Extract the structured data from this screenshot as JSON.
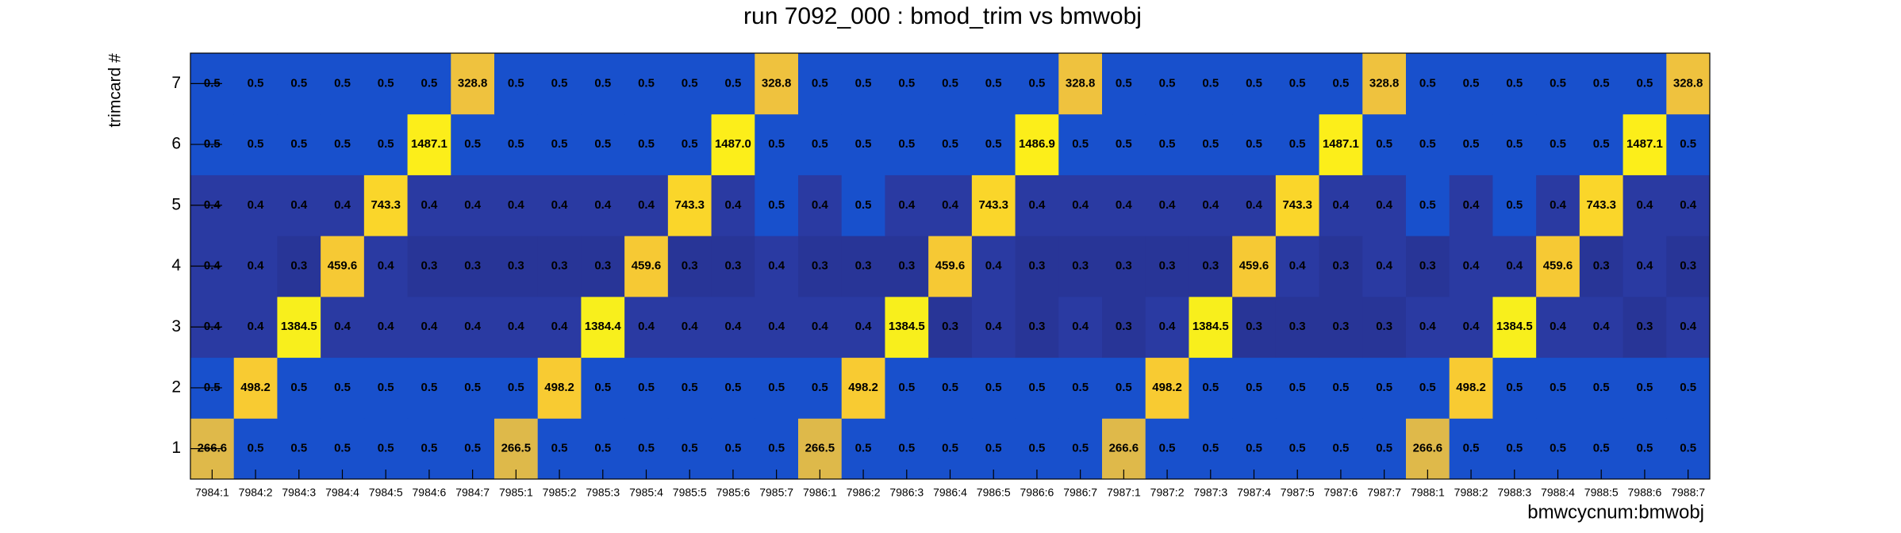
{
  "chart_data": {
    "type": "heatmap",
    "title": "run 7092_000 : bmod_trim vs bmwobj",
    "x_label": "bmwcycnum:bmwobj",
    "y_label": "trimcard #",
    "x_categories": [
      "7984:1",
      "7984:2",
      "7984:3",
      "7984:4",
      "7984:5",
      "7984:6",
      "7984:7",
      "7985:1",
      "7985:2",
      "7985:3",
      "7985:4",
      "7985:5",
      "7985:6",
      "7985:7",
      "7986:1",
      "7986:2",
      "7986:3",
      "7986:4",
      "7986:5",
      "7986:6",
      "7986:7",
      "7987:1",
      "7987:2",
      "7987:3",
      "7987:4",
      "7987:5",
      "7987:6",
      "7987:7",
      "7988:1",
      "7988:2",
      "7988:3",
      "7988:4",
      "7988:5",
      "7988:6",
      "7988:7"
    ],
    "y_categories": [
      1,
      2,
      3,
      4,
      5,
      6,
      7
    ],
    "values": [
      [
        266.6,
        0.5,
        0.5,
        0.5,
        0.5,
        0.5,
        0.5,
        266.5,
        0.5,
        0.5,
        0.5,
        0.5,
        0.5,
        0.5,
        266.5,
        0.5,
        0.5,
        0.5,
        0.5,
        0.5,
        0.5,
        266.6,
        0.5,
        0.5,
        0.5,
        0.5,
        0.5,
        0.5,
        266.6,
        0.5,
        0.5,
        0.5,
        0.5,
        0.5,
        0.5
      ],
      [
        0.5,
        498.2,
        0.5,
        0.5,
        0.5,
        0.5,
        0.5,
        0.5,
        498.2,
        0.5,
        0.5,
        0.5,
        0.5,
        0.5,
        0.5,
        498.2,
        0.5,
        0.5,
        0.5,
        0.5,
        0.5,
        0.5,
        498.2,
        0.5,
        0.5,
        0.5,
        0.5,
        0.5,
        0.5,
        498.2,
        0.5,
        0.5,
        0.5,
        0.5,
        0.5
      ],
      [
        0.4,
        0.4,
        1384.5,
        0.4,
        0.4,
        0.4,
        0.4,
        0.4,
        0.4,
        1384.4,
        0.4,
        0.4,
        0.4,
        0.4,
        0.4,
        0.4,
        1384.5,
        0.3,
        0.4,
        0.3,
        0.4,
        0.3,
        0.4,
        1384.5,
        0.3,
        0.3,
        0.3,
        0.3,
        0.4,
        0.4,
        1384.5,
        0.4,
        0.4,
        0.3,
        0.4
      ],
      [
        0.4,
        0.4,
        0.3,
        459.6,
        0.4,
        0.3,
        0.3,
        0.3,
        0.3,
        0.3,
        459.6,
        0.3,
        0.3,
        0.4,
        0.3,
        0.3,
        0.3,
        459.6,
        0.4,
        0.3,
        0.3,
        0.3,
        0.3,
        0.3,
        459.6,
        0.4,
        0.3,
        0.4,
        0.3,
        0.4,
        0.4,
        459.6,
        0.3,
        0.4,
        0.3
      ],
      [
        0.4,
        0.4,
        0.4,
        0.4,
        743.3,
        0.4,
        0.4,
        0.4,
        0.4,
        0.4,
        0.4,
        743.3,
        0.4,
        0.5,
        0.4,
        0.5,
        0.4,
        0.4,
        743.3,
        0.4,
        0.4,
        0.4,
        0.4,
        0.4,
        0.4,
        743.3,
        0.4,
        0.4,
        0.5,
        0.4,
        0.5,
        0.4,
        743.3,
        0.4,
        0.4
      ],
      [
        0.5,
        0.5,
        0.5,
        0.5,
        0.5,
        1487.1,
        0.5,
        0.5,
        0.5,
        0.5,
        0.5,
        0.5,
        1487.0,
        0.5,
        0.5,
        0.5,
        0.5,
        0.5,
        0.5,
        1486.9,
        0.5,
        0.5,
        0.5,
        0.5,
        0.5,
        0.5,
        1487.1,
        0.5,
        0.5,
        0.5,
        0.5,
        0.5,
        0.5,
        1487.1,
        0.5
      ],
      [
        0.5,
        0.5,
        0.5,
        0.5,
        0.5,
        0.5,
        328.8,
        0.5,
        0.5,
        0.5,
        0.5,
        0.5,
        0.5,
        328.8,
        0.5,
        0.5,
        0.5,
        0.5,
        0.5,
        0.5,
        328.8,
        0.5,
        0.5,
        0.5,
        0.5,
        0.5,
        0.5,
        328.8,
        0.5,
        0.5,
        0.5,
        0.5,
        0.5,
        0.5,
        328.8
      ]
    ],
    "value_labels": [
      [
        "266.6",
        "0.5",
        "0.5",
        "0.5",
        "0.5",
        "0.5",
        "0.5",
        "266.5",
        "0.5",
        "0.5",
        "0.5",
        "0.5",
        "0.5",
        "0.5",
        "266.5",
        "0.5",
        "0.5",
        "0.5",
        "0.5",
        "0.5",
        "0.5",
        "266.6",
        "0.5",
        "0.5",
        "0.5",
        "0.5",
        "0.5",
        "0.5",
        "266.6",
        "0.5",
        "0.5",
        "0.5",
        "0.5",
        "0.5",
        "0.5"
      ],
      [
        "0.5",
        "498.2",
        "0.5",
        "0.5",
        "0.5",
        "0.5",
        "0.5",
        "0.5",
        "498.2",
        "0.5",
        "0.5",
        "0.5",
        "0.5",
        "0.5",
        "0.5",
        "498.2",
        "0.5",
        "0.5",
        "0.5",
        "0.5",
        "0.5",
        "0.5",
        "498.2",
        "0.5",
        "0.5",
        "0.5",
        "0.5",
        "0.5",
        "0.5",
        "498.2",
        "0.5",
        "0.5",
        "0.5",
        "0.5",
        "0.5"
      ],
      [
        "0.4",
        "0.4",
        "1384.5",
        "0.4",
        "0.4",
        "0.4",
        "0.4",
        "0.4",
        "0.4",
        "1384.4",
        "0.4",
        "0.4",
        "0.4",
        "0.4",
        "0.4",
        "0.4",
        "1384.5",
        "0.3",
        "0.4",
        "0.3",
        "0.4",
        "0.3",
        "0.4",
        "1384.5",
        "0.3",
        "0.3",
        "0.3",
        "0.3",
        "0.4",
        "0.4",
        "1384.5",
        "0.4",
        "0.4",
        "0.3",
        "0.4"
      ],
      [
        "0.4",
        "0.4",
        "0.3",
        "459.6",
        "0.4",
        "0.3",
        "0.3",
        "0.3",
        "0.3",
        "0.3",
        "459.6",
        "0.3",
        "0.3",
        "0.4",
        "0.3",
        "0.3",
        "0.3",
        "459.6",
        "0.4",
        "0.3",
        "0.3",
        "0.3",
        "0.3",
        "0.3",
        "459.6",
        "0.4",
        "0.3",
        "0.4",
        "0.3",
        "0.4",
        "0.4",
        "459.6",
        "0.3",
        "0.4",
        "0.3"
      ],
      [
        "0.4",
        "0.4",
        "0.4",
        "0.4",
        "743.3",
        "0.4",
        "0.4",
        "0.4",
        "0.4",
        "0.4",
        "0.4",
        "743.3",
        "0.4",
        "0.5",
        "0.4",
        "0.5",
        "0.4",
        "0.4",
        "743.3",
        "0.4",
        "0.4",
        "0.4",
        "0.4",
        "0.4",
        "0.4",
        "743.3",
        "0.4",
        "0.4",
        "0.5",
        "0.4",
        "0.5",
        "0.4",
        "743.3",
        "0.4",
        "0.4"
      ],
      [
        "0.5",
        "0.5",
        "0.5",
        "0.5",
        "0.5",
        "1487.1",
        "0.5",
        "0.5",
        "0.5",
        "0.5",
        "0.5",
        "0.5",
        "1487.0",
        "0.5",
        "0.5",
        "0.5",
        "0.5",
        "0.5",
        "0.5",
        "1486.9",
        "0.5",
        "0.5",
        "0.5",
        "0.5",
        "0.5",
        "0.5",
        "1487.1",
        "0.5",
        "0.5",
        "0.5",
        "0.5",
        "0.5",
        "0.5",
        "1487.1",
        "0.5"
      ],
      [
        "0.5",
        "0.5",
        "0.5",
        "0.5",
        "0.5",
        "0.5",
        "328.8",
        "0.5",
        "0.5",
        "0.5",
        "0.5",
        "0.5",
        "0.5",
        "328.8",
        "0.5",
        "0.5",
        "0.5",
        "0.5",
        "0.5",
        "0.5",
        "328.8",
        "0.5",
        "0.5",
        "0.5",
        "0.5",
        "0.5",
        "0.5",
        "328.8",
        "0.5",
        "0.5",
        "0.5",
        "0.5",
        "0.5",
        "0.5",
        "328.8"
      ]
    ],
    "zscale": "log",
    "palette": [
      {
        "stop": 0,
        "color": "#283597"
      },
      {
        "stop": 0.035,
        "color": "#2a3aa2"
      },
      {
        "stop": 0.06,
        "color": "#1850cc"
      },
      {
        "stop": 0.78,
        "color": "#2a58c4"
      },
      {
        "stop": 0.798,
        "color": "#dfb94a"
      },
      {
        "stop": 0.822,
        "color": "#efc23e"
      },
      {
        "stop": 0.87,
        "color": "#f8cb32"
      },
      {
        "stop": 0.918,
        "color": "#fad62a"
      },
      {
        "stop": 0.99,
        "color": "#f7ef1c"
      },
      {
        "stop": 1,
        "color": "#fcee1a"
      }
    ]
  }
}
